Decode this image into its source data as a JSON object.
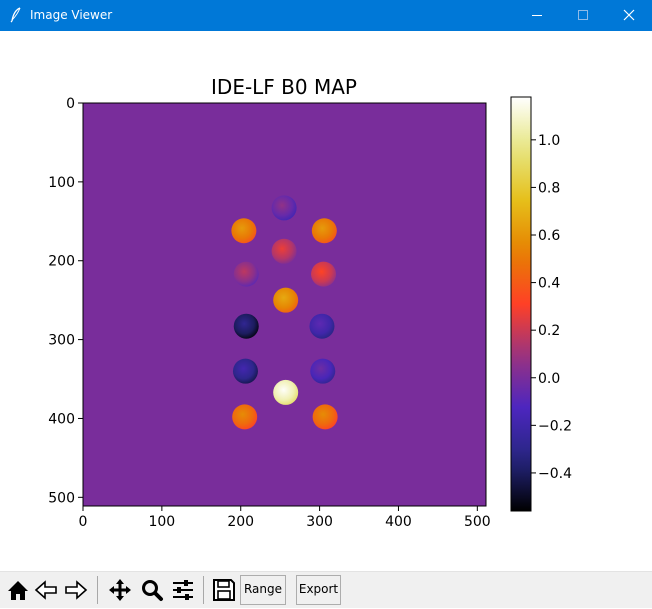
{
  "window": {
    "title": "Image Viewer",
    "icon": "feather-icon"
  },
  "toolbar": {
    "range_label": "Range",
    "export_label": "Export",
    "icons": [
      "home-icon",
      "back-arrow-icon",
      "forward-arrow-icon",
      "pan-icon",
      "zoom-icon",
      "configure-subplots-icon",
      "save-icon"
    ]
  },
  "chart_data": {
    "type": "heatmap",
    "title": "IDE-LF B0 MAP",
    "x_ticks": [
      "0",
      "100",
      "200",
      "300",
      "400",
      "500"
    ],
    "y_ticks": [
      "0",
      "100",
      "200",
      "300",
      "400",
      "500"
    ],
    "xlim": [
      0,
      511
    ],
    "ylim": [
      511,
      0
    ],
    "colorbar": {
      "colormap": "CMRmap",
      "range": [
        -0.56,
        1.18
      ],
      "ticks": [
        "1.0",
        "0.8",
        "0.6",
        "0.4",
        "0.2",
        "0.0",
        "−0.2",
        "−0.4"
      ],
      "tick_values": [
        1.0,
        0.8,
        0.6,
        0.4,
        0.2,
        0.0,
        -0.2,
        -0.4
      ]
    },
    "background_value": 0.0,
    "phantoms": [
      {
        "x": 255,
        "y": 133,
        "value": -0.05
      },
      {
        "x": 204,
        "y": 162,
        "value": 0.5
      },
      {
        "x": 306,
        "y": 162,
        "value": 0.5
      },
      {
        "x": 255,
        "y": 188,
        "value": 0.15
      },
      {
        "x": 207,
        "y": 217,
        "value": 0.05
      },
      {
        "x": 305,
        "y": 217,
        "value": 0.2
      },
      {
        "x": 257,
        "y": 250,
        "value": 0.55
      },
      {
        "x": 207,
        "y": 283,
        "value": -0.4
      },
      {
        "x": 303,
        "y": 283,
        "value": -0.2
      },
      {
        "x": 206,
        "y": 340,
        "value": -0.3
      },
      {
        "x": 304,
        "y": 340,
        "value": -0.15
      },
      {
        "x": 257,
        "y": 367,
        "value": 1.05
      },
      {
        "x": 205,
        "y": 398,
        "value": 0.45
      },
      {
        "x": 307,
        "y": 398,
        "value": 0.45
      }
    ]
  }
}
